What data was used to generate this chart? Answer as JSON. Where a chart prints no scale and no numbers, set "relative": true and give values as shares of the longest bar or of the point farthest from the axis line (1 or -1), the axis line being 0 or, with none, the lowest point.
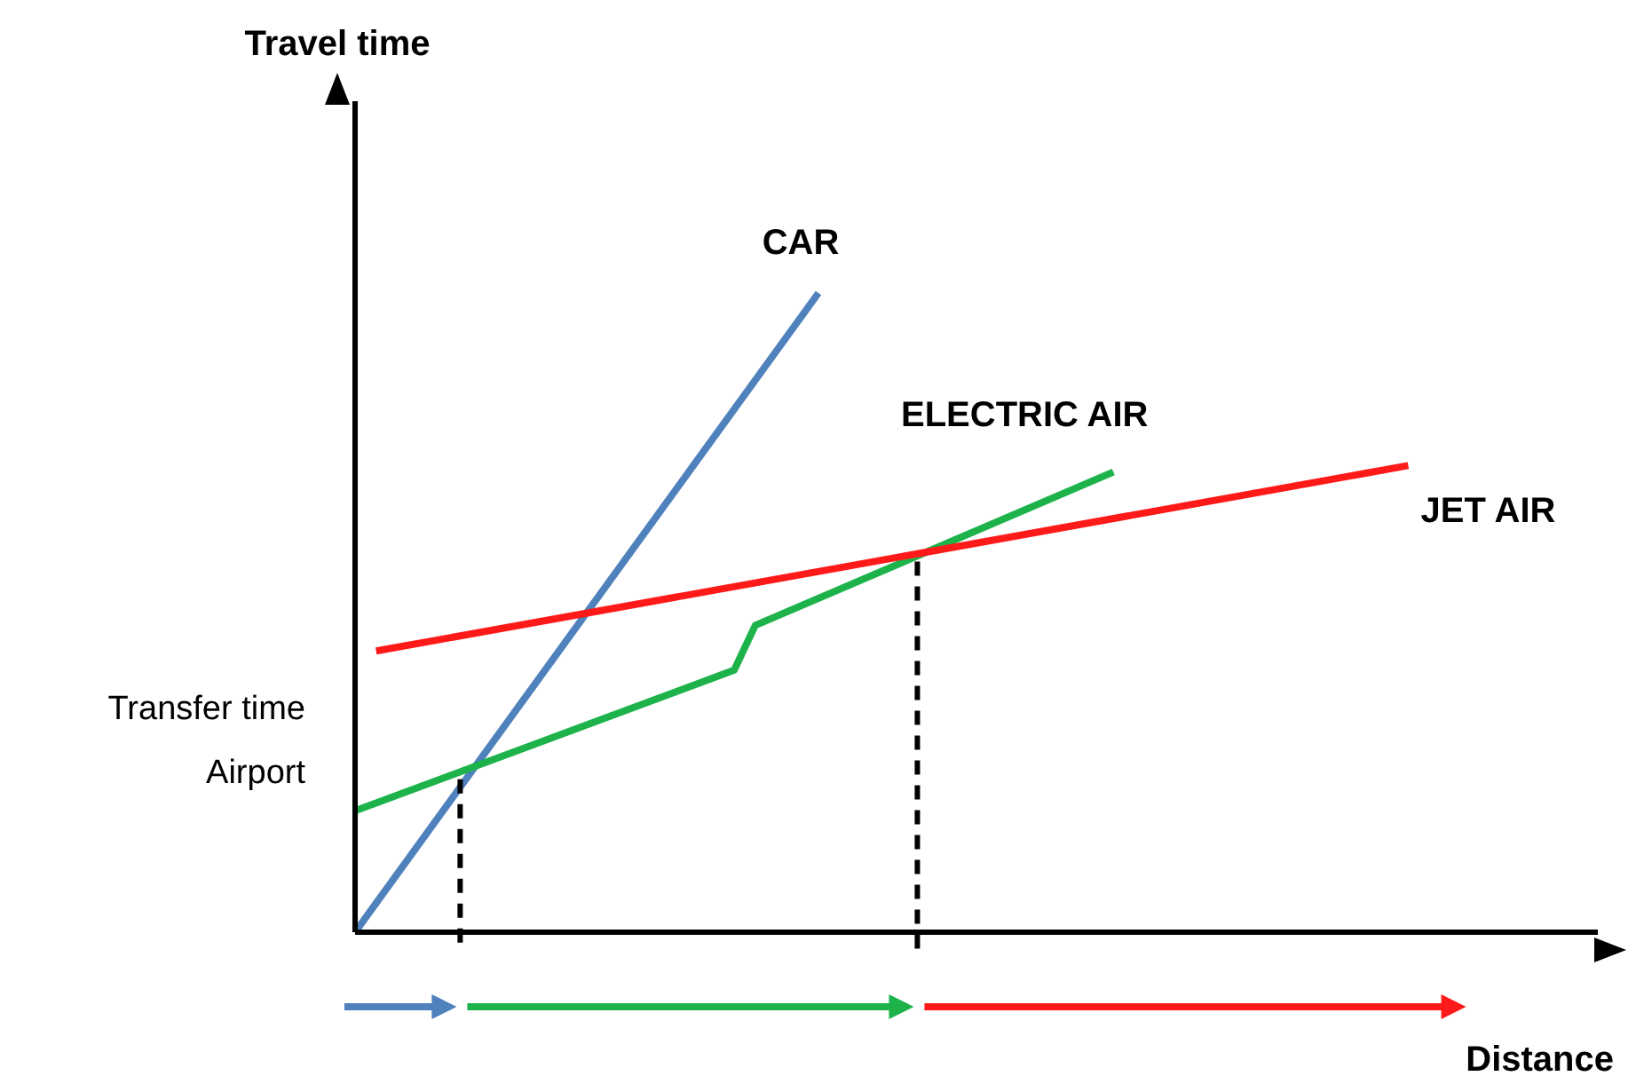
{
  "chart_data": {
    "type": "line",
    "relative": true,
    "xlabel": "Distance",
    "annotations": [
      "Travel time",
      "Transfer time Airport"
    ],
    "marker": "none",
    "categories": [
      null,
      null,
      null,
      null,
      null,
      null,
      null,
      null,
      null,
      null,
      null,
      null,
      null,
      null,
      null,
      null,
      null,
      null,
      null,
      null,
      null,
      null,
      null,
      null,
      null,
      null,
      null,
      null,
      null,
      null,
      null,
      null,
      null,
      null,
      null,
      null,
      null,
      null,
      null,
      null,
      null,
      null,
      null,
      null,
      null,
      null,
      null,
      null,
      null,
      null,
      null,
      null,
      null,
      null,
      null,
      null,
      null,
      null,
      null,
      null
    ],
    "series": [
      {
        "name": "CAR",
        "color": "#4f81bd",
        "values": [
          0,
          null,
          null,
          null,
          null,
          null,
          null,
          null,
          null,
          null,
          null,
          null,
          null,
          null,
          null,
          null,
          null,
          null,
          null,
          null,
          null,
          null,
          1,
          null,
          null,
          null,
          null,
          null,
          null,
          null,
          null,
          null,
          null,
          null,
          null,
          null,
          null,
          null,
          null,
          null,
          null,
          null,
          null,
          null,
          null,
          null,
          null,
          null,
          null,
          null,
          null,
          null,
          null,
          null,
          null,
          null,
          null,
          null,
          null,
          null
        ]
      },
      {
        "name": "ELECTRIC AIR",
        "color": "#1db34a",
        "values": [
          0.19,
          null,
          null,
          null,
          null,
          null,
          null,
          null,
          null,
          null,
          null,
          null,
          null,
          null,
          null,
          null,
          null,
          null,
          0.41,
          0.48,
          null,
          null,
          null,
          null,
          null,
          null,
          null,
          null,
          null,
          null,
          null,
          null,
          null,
          null,
          null,
          null,
          0.72,
          null,
          null,
          null,
          null,
          null,
          null,
          null,
          null,
          null,
          null,
          null,
          null,
          null,
          null,
          null,
          null,
          null,
          null,
          null,
          null,
          null,
          null,
          null
        ]
      },
      {
        "name": "JET AIR",
        "color": "#ff1a1a",
        "values": [
          null,
          0.44,
          null,
          null,
          null,
          null,
          null,
          null,
          null,
          null,
          null,
          null,
          null,
          null,
          null,
          null,
          null,
          null,
          null,
          null,
          null,
          null,
          null,
          null,
          null,
          null,
          null,
          null,
          null,
          null,
          null,
          null,
          null,
          null,
          null,
          null,
          null,
          null,
          null,
          null,
          null,
          null,
          null,
          null,
          null,
          null,
          null,
          null,
          null,
          null,
          0.73,
          null,
          null,
          null,
          null,
          null,
          null,
          null,
          null,
          null
        ]
      }
    ]
  }
}
